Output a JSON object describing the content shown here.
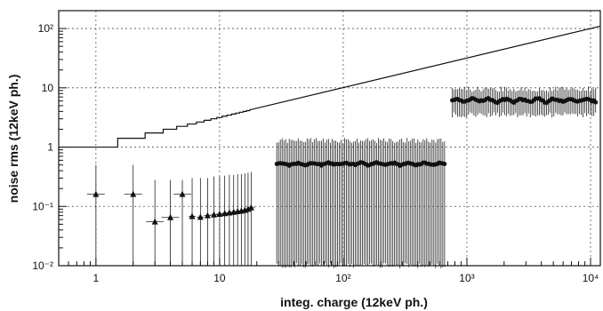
{
  "chart_data": {
    "type": "scatter",
    "title": "",
    "xlabel": "integ. charge (12keV ph.)",
    "ylabel": "noise rms (12keV ph.)",
    "xscale": "log",
    "yscale": "log",
    "xlim": [
      0.5,
      12000
    ],
    "ylim": [
      0.01,
      200
    ],
    "grid": true,
    "x_ticks": [
      {
        "value": 1,
        "label": "1"
      },
      {
        "value": 10,
        "label": "10"
      },
      {
        "value": 100,
        "label": "10²"
      },
      {
        "value": 1000,
        "label": "10³"
      },
      {
        "value": 10000,
        "label": "10⁴"
      }
    ],
    "y_ticks": [
      {
        "value": 0.01,
        "label": "10⁻²"
      },
      {
        "value": 0.1,
        "label": "10⁻¹"
      },
      {
        "value": 1,
        "label": "1"
      },
      {
        "value": 10,
        "label": "10"
      },
      {
        "value": 100,
        "label": "10²"
      }
    ],
    "reference_curve": {
      "x": [
        0.5,
        1.5,
        1.5,
        2.5,
        2.5,
        3.5,
        3.5,
        4.5,
        4.5,
        5.5,
        5.5,
        6.5,
        6.5,
        7.5,
        7.5,
        8.5,
        8.5,
        9.5,
        9.5,
        10.5,
        10.5,
        11.5,
        11.5,
        12.5,
        12.5,
        13.5,
        13.5,
        14.5,
        14.5,
        15.5,
        15.5,
        16.5,
        16.5,
        17.5,
        17.5,
        12000
      ],
      "y": [
        1,
        1,
        1.41,
        1.41,
        1.73,
        1.73,
        2,
        2,
        2.24,
        2.24,
        2.45,
        2.45,
        2.65,
        2.65,
        2.83,
        2.83,
        3,
        3,
        3.16,
        3.16,
        3.32,
        3.32,
        3.46,
        3.46,
        3.61,
        3.61,
        3.74,
        3.74,
        3.87,
        3.87,
        4,
        4,
        4.12,
        4.12,
        4.24,
        109.5
      ]
    },
    "series": [
      {
        "marker": "triangle",
        "x": [
          1,
          2,
          3,
          4,
          5,
          6,
          7,
          8,
          9,
          10,
          11,
          12,
          13,
          14,
          15,
          16,
          17,
          18
        ],
        "y": [
          0.16,
          0.16,
          0.055,
          0.065,
          0.16,
          0.068,
          0.066,
          0.07,
          0.072,
          0.074,
          0.076,
          0.078,
          0.08,
          0.082,
          0.084,
          0.086,
          0.09,
          0.095
        ],
        "err_low": 0.01,
        "err_high": [
          0.5,
          0.5,
          0.28,
          0.28,
          0.28,
          0.3,
          0.3,
          0.3,
          0.32,
          0.32,
          0.33,
          0.34,
          0.34,
          0.35,
          0.35,
          0.36,
          0.37,
          0.38
        ]
      },
      {
        "marker": "circle",
        "x_range": [
          29,
          660
        ],
        "y": 0.52,
        "y_variation": [
          0.48,
          0.56
        ],
        "err_low": 0.01,
        "err_high": 1.3
      },
      {
        "marker": "circle",
        "x_range": [
          760,
          11000
        ],
        "y": 6.0,
        "y_variation": [
          5.5,
          6.8
        ],
        "err_low": 3.5,
        "err_high": 9.5
      }
    ]
  }
}
